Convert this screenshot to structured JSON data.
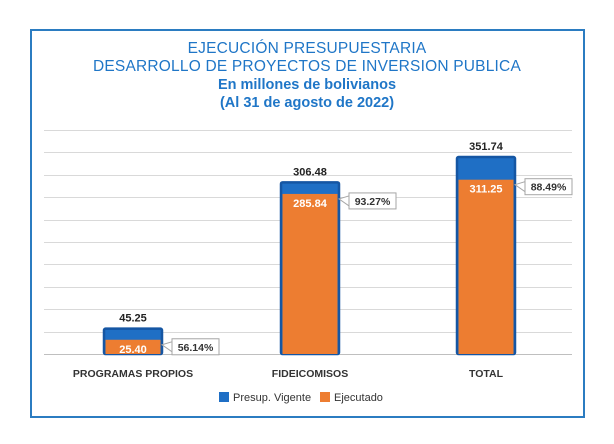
{
  "chart_data": {
    "type": "bar",
    "title_lines": [
      "EJECUCIÓN PRESUPUESTARIA",
      "DESARROLLO DE PROYECTOS  DE INVERSION  PUBLICA"
    ],
    "subtitle_lines": [
      "En millones de bolivianos",
      "(Al 31 de agosto de 2022)"
    ],
    "categories": [
      "PROGRAMAS PROPIOS",
      "FIDEICOMISOS",
      "TOTAL"
    ],
    "series": [
      {
        "name": "Presup. Vigente",
        "color": "#1f6fc5",
        "values": [
          45.25,
          306.48,
          351.74
        ],
        "labels": [
          "45.25",
          "306.48",
          "351.74"
        ]
      },
      {
        "name": "Ejecutado",
        "color": "#ed7d31",
        "values": [
          25.4,
          285.84,
          311.25
        ],
        "labels": [
          "25.40",
          "285.84",
          "311.25"
        ]
      }
    ],
    "execution_pct": [
      "56.14%",
      "93.27%",
      "88.49%"
    ],
    "ylim": [
      0,
      400
    ],
    "ytick_step": 40,
    "grid": true,
    "legend_position": "bottom"
  }
}
